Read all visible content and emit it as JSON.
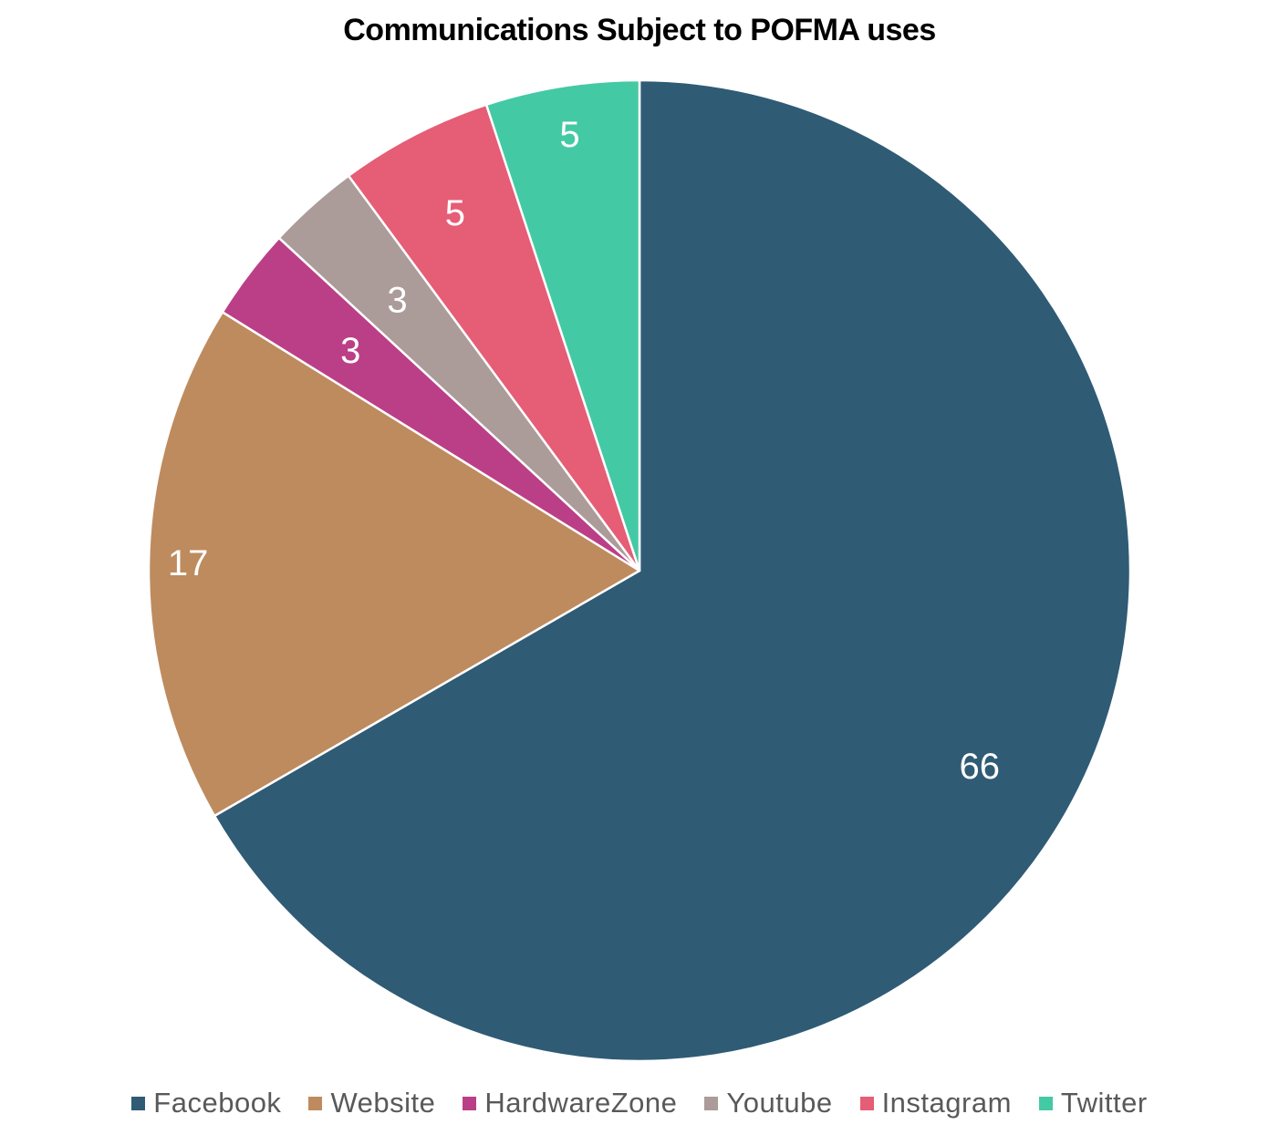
{
  "chart_data": {
    "type": "pie",
    "title": "Communications Subject to POFMA uses",
    "categories": [
      "Facebook",
      "Website",
      "HardwareZone",
      "Youtube",
      "Instagram",
      "Twitter"
    ],
    "values": [
      66,
      17,
      3,
      3,
      5,
      5
    ],
    "data_labels": [
      "66",
      "17",
      "3",
      "3",
      "5",
      "5"
    ],
    "colors": [
      "#2F5B75",
      "#BE8B5E",
      "#BB3F87",
      "#AB9B99",
      "#E65D76",
      "#44C9A5"
    ],
    "start_angle_deg": 0,
    "direction": "clockwise",
    "legend_position": "bottom"
  }
}
